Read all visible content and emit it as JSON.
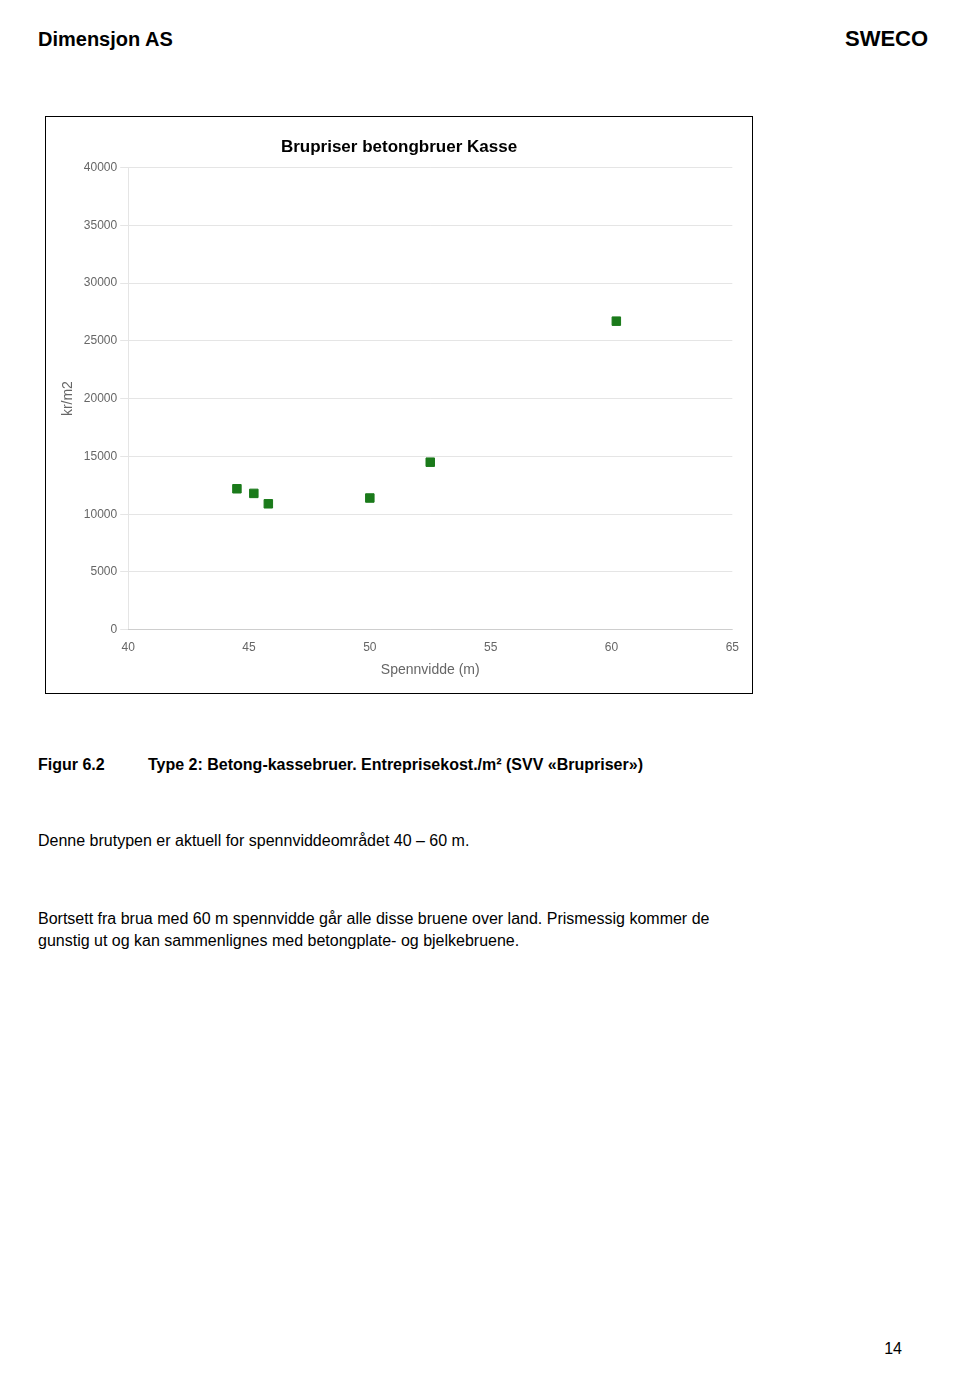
{
  "chart_data": {
    "type": "scatter",
    "title": "Brupriser betongbruer Kasse",
    "xlabel": "Spennvidde (m)",
    "ylabel": "kr/m2",
    "x": [
      44.5,
      45.2,
      45.8,
      50.0,
      52.5,
      60.2
    ],
    "values": [
      12200,
      11800,
      10900,
      11400,
      14500,
      26700
    ],
    "color": "#1a7a1a",
    "marker": "square",
    "xlim": [
      40,
      65
    ],
    "ylim": [
      0,
      40000
    ],
    "xticks": [
      40,
      45,
      50,
      55,
      60,
      65
    ],
    "yticks": [
      0,
      5000,
      10000,
      15000,
      20000,
      25000,
      30000,
      35000,
      40000
    ],
    "grid": "y",
    "annotations": [
      "Dimensjon AS",
      "SWECO",
      "Figur 6.2",
      "Type 2: Betong-kassebruer. Entreprisekost./m² (SVV «Brupriser»)",
      "Denne brutypen er aktuell for spennviddeområdet 40 – 60 m.",
      "Bortsett fra brua med 60 m spennvidde går alle disse bruene over land. Prismessig kommer de\ngunstig ut og kan sammenlignes med betongplate- og bjelkebruene.",
      "14"
    ]
  }
}
